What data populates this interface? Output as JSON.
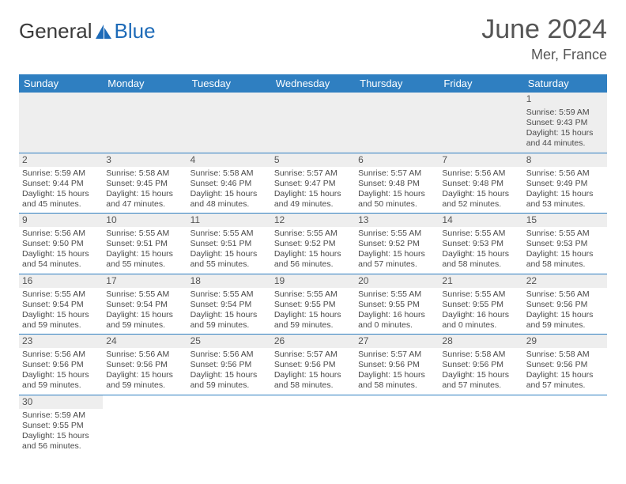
{
  "brand": {
    "part1": "General",
    "part2": "Blue"
  },
  "title": "June 2024",
  "location": "Mer, France",
  "colors": {
    "header_bg": "#2f7fc1",
    "header_text": "#ffffff",
    "brand_blue": "#1e6bb8",
    "text": "#4a4a4a",
    "daynum_bg": "#eeeeee",
    "border": "#2f7fc1"
  },
  "day_headers": [
    "Sunday",
    "Monday",
    "Tuesday",
    "Wednesday",
    "Thursday",
    "Friday",
    "Saturday"
  ],
  "weeks": [
    [
      null,
      null,
      null,
      null,
      null,
      null,
      {
        "n": "1",
        "sr": "Sunrise: 5:59 AM",
        "ss": "Sunset: 9:43 PM",
        "d1": "Daylight: 15 hours",
        "d2": "and 44 minutes."
      }
    ],
    [
      {
        "n": "2",
        "sr": "Sunrise: 5:59 AM",
        "ss": "Sunset: 9:44 PM",
        "d1": "Daylight: 15 hours",
        "d2": "and 45 minutes."
      },
      {
        "n": "3",
        "sr": "Sunrise: 5:58 AM",
        "ss": "Sunset: 9:45 PM",
        "d1": "Daylight: 15 hours",
        "d2": "and 47 minutes."
      },
      {
        "n": "4",
        "sr": "Sunrise: 5:58 AM",
        "ss": "Sunset: 9:46 PM",
        "d1": "Daylight: 15 hours",
        "d2": "and 48 minutes."
      },
      {
        "n": "5",
        "sr": "Sunrise: 5:57 AM",
        "ss": "Sunset: 9:47 PM",
        "d1": "Daylight: 15 hours",
        "d2": "and 49 minutes."
      },
      {
        "n": "6",
        "sr": "Sunrise: 5:57 AM",
        "ss": "Sunset: 9:48 PM",
        "d1": "Daylight: 15 hours",
        "d2": "and 50 minutes."
      },
      {
        "n": "7",
        "sr": "Sunrise: 5:56 AM",
        "ss": "Sunset: 9:48 PM",
        "d1": "Daylight: 15 hours",
        "d2": "and 52 minutes."
      },
      {
        "n": "8",
        "sr": "Sunrise: 5:56 AM",
        "ss": "Sunset: 9:49 PM",
        "d1": "Daylight: 15 hours",
        "d2": "and 53 minutes."
      }
    ],
    [
      {
        "n": "9",
        "sr": "Sunrise: 5:56 AM",
        "ss": "Sunset: 9:50 PM",
        "d1": "Daylight: 15 hours",
        "d2": "and 54 minutes."
      },
      {
        "n": "10",
        "sr": "Sunrise: 5:55 AM",
        "ss": "Sunset: 9:51 PM",
        "d1": "Daylight: 15 hours",
        "d2": "and 55 minutes."
      },
      {
        "n": "11",
        "sr": "Sunrise: 5:55 AM",
        "ss": "Sunset: 9:51 PM",
        "d1": "Daylight: 15 hours",
        "d2": "and 55 minutes."
      },
      {
        "n": "12",
        "sr": "Sunrise: 5:55 AM",
        "ss": "Sunset: 9:52 PM",
        "d1": "Daylight: 15 hours",
        "d2": "and 56 minutes."
      },
      {
        "n": "13",
        "sr": "Sunrise: 5:55 AM",
        "ss": "Sunset: 9:52 PM",
        "d1": "Daylight: 15 hours",
        "d2": "and 57 minutes."
      },
      {
        "n": "14",
        "sr": "Sunrise: 5:55 AM",
        "ss": "Sunset: 9:53 PM",
        "d1": "Daylight: 15 hours",
        "d2": "and 58 minutes."
      },
      {
        "n": "15",
        "sr": "Sunrise: 5:55 AM",
        "ss": "Sunset: 9:53 PM",
        "d1": "Daylight: 15 hours",
        "d2": "and 58 minutes."
      }
    ],
    [
      {
        "n": "16",
        "sr": "Sunrise: 5:55 AM",
        "ss": "Sunset: 9:54 PM",
        "d1": "Daylight: 15 hours",
        "d2": "and 59 minutes."
      },
      {
        "n": "17",
        "sr": "Sunrise: 5:55 AM",
        "ss": "Sunset: 9:54 PM",
        "d1": "Daylight: 15 hours",
        "d2": "and 59 minutes."
      },
      {
        "n": "18",
        "sr": "Sunrise: 5:55 AM",
        "ss": "Sunset: 9:54 PM",
        "d1": "Daylight: 15 hours",
        "d2": "and 59 minutes."
      },
      {
        "n": "19",
        "sr": "Sunrise: 5:55 AM",
        "ss": "Sunset: 9:55 PM",
        "d1": "Daylight: 15 hours",
        "d2": "and 59 minutes."
      },
      {
        "n": "20",
        "sr": "Sunrise: 5:55 AM",
        "ss": "Sunset: 9:55 PM",
        "d1": "Daylight: 16 hours",
        "d2": "and 0 minutes."
      },
      {
        "n": "21",
        "sr": "Sunrise: 5:55 AM",
        "ss": "Sunset: 9:55 PM",
        "d1": "Daylight: 16 hours",
        "d2": "and 0 minutes."
      },
      {
        "n": "22",
        "sr": "Sunrise: 5:56 AM",
        "ss": "Sunset: 9:56 PM",
        "d1": "Daylight: 15 hours",
        "d2": "and 59 minutes."
      }
    ],
    [
      {
        "n": "23",
        "sr": "Sunrise: 5:56 AM",
        "ss": "Sunset: 9:56 PM",
        "d1": "Daylight: 15 hours",
        "d2": "and 59 minutes."
      },
      {
        "n": "24",
        "sr": "Sunrise: 5:56 AM",
        "ss": "Sunset: 9:56 PM",
        "d1": "Daylight: 15 hours",
        "d2": "and 59 minutes."
      },
      {
        "n": "25",
        "sr": "Sunrise: 5:56 AM",
        "ss": "Sunset: 9:56 PM",
        "d1": "Daylight: 15 hours",
        "d2": "and 59 minutes."
      },
      {
        "n": "26",
        "sr": "Sunrise: 5:57 AM",
        "ss": "Sunset: 9:56 PM",
        "d1": "Daylight: 15 hours",
        "d2": "and 58 minutes."
      },
      {
        "n": "27",
        "sr": "Sunrise: 5:57 AM",
        "ss": "Sunset: 9:56 PM",
        "d1": "Daylight: 15 hours",
        "d2": "and 58 minutes."
      },
      {
        "n": "28",
        "sr": "Sunrise: 5:58 AM",
        "ss": "Sunset: 9:56 PM",
        "d1": "Daylight: 15 hours",
        "d2": "and 57 minutes."
      },
      {
        "n": "29",
        "sr": "Sunrise: 5:58 AM",
        "ss": "Sunset: 9:56 PM",
        "d1": "Daylight: 15 hours",
        "d2": "and 57 minutes."
      }
    ],
    [
      {
        "n": "30",
        "sr": "Sunrise: 5:59 AM",
        "ss": "Sunset: 9:55 PM",
        "d1": "Daylight: 15 hours",
        "d2": "and 56 minutes."
      },
      null,
      null,
      null,
      null,
      null,
      null
    ]
  ]
}
